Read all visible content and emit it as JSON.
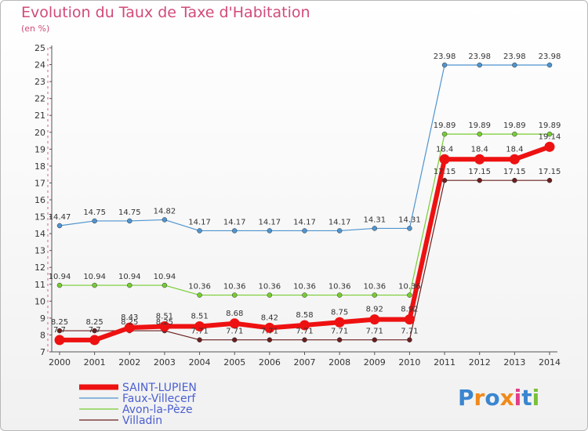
{
  "title": "Evolution du Taux de Taxe d'Habitation",
  "subtitle": "(en %)",
  "logo": "Proxiti",
  "chart_data": {
    "type": "line",
    "x": [
      2000,
      2001,
      2002,
      2003,
      2004,
      2005,
      2006,
      2007,
      2008,
      2009,
      2010,
      2011,
      2012,
      2013,
      2014
    ],
    "ylim": [
      7,
      25
    ],
    "yticks": [
      7,
      8,
      9,
      10,
      11,
      12,
      13,
      14,
      15,
      16,
      17,
      18,
      19,
      20,
      21,
      22,
      23,
      24,
      25
    ],
    "grid": false,
    "legend_position": "bottom-left",
    "series": [
      {
        "name": "Faux-Villecerf",
        "color": "#4f94cf",
        "width": 1.2,
        "values": [
          14.47,
          14.75,
          14.75,
          14.82,
          14.17,
          14.17,
          14.17,
          14.17,
          14.17,
          14.31,
          14.31,
          23.98,
          23.98,
          23.98,
          23.98
        ],
        "labels": [
          "14.47",
          "14.75",
          "14.75",
          "14.82",
          "14.17",
          "14.17",
          "14.17",
          "14.17",
          "14.17",
          "14.31",
          "14.31",
          "23.98",
          "23.98",
          "23.98",
          "23.98"
        ]
      },
      {
        "name": "Avon-la-Pèze",
        "color": "#77cc33",
        "width": 1.2,
        "values": [
          10.94,
          10.94,
          10.94,
          10.94,
          10.36,
          10.36,
          10.36,
          10.36,
          10.36,
          10.36,
          10.36,
          19.89,
          19.89,
          19.89,
          19.89
        ],
        "labels": [
          "10.94",
          "10.94",
          "10.94",
          "10.94",
          "10.36",
          "10.36",
          "10.36",
          "10.36",
          "10.36",
          "10.36",
          "10.36",
          "19.89",
          "19.89",
          "19.89",
          "19.89"
        ]
      },
      {
        "name": "Villadin",
        "color": "#6b1f1f",
        "width": 1.2,
        "values": [
          8.25,
          8.25,
          8.25,
          8.25,
          7.71,
          7.71,
          7.71,
          7.71,
          7.71,
          7.71,
          7.71,
          17.15,
          17.15,
          17.15,
          17.15
        ],
        "labels": [
          "8.25",
          "8.25",
          "8.25",
          "8.25",
          "7.71",
          "7.71",
          "7.71",
          "7.71",
          "7.71",
          "7.71",
          "7.71",
          "17.15",
          "17.15",
          "17.15",
          "17.15"
        ]
      },
      {
        "name": "SAINT-LUPIEN",
        "color": "#ee1111",
        "width": 6,
        "values": [
          7.7,
          7.7,
          8.43,
          8.51,
          8.51,
          8.68,
          8.42,
          8.58,
          8.75,
          8.92,
          8.92,
          18.4,
          18.4,
          18.4,
          19.14
        ],
        "labels": [
          "7.7",
          "7.7",
          "8.43",
          "8.51",
          "8.51",
          "8.68",
          "8.42",
          "8.58",
          "8.75",
          "8.92",
          "8.92",
          "18.4",
          "18.4",
          "18.4",
          "19.14"
        ]
      }
    ]
  }
}
